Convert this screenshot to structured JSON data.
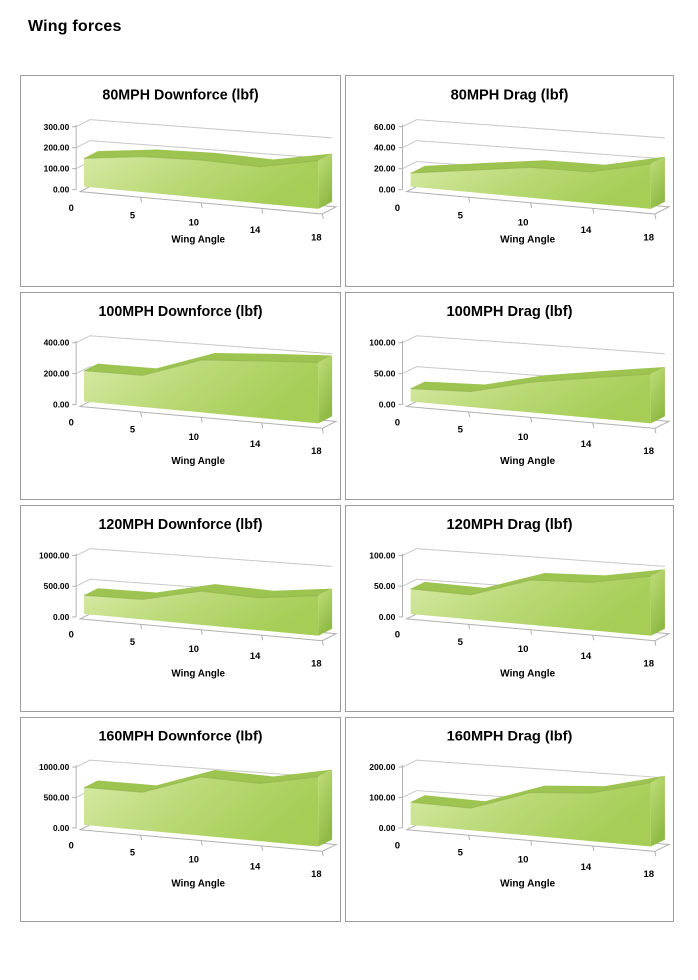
{
  "page": {
    "title": "Wing forces"
  },
  "style": {
    "area_gradient_light": "#d6e9a4",
    "area_gradient_mid": "#b8d873",
    "area_gradient_dark": "#a6cd56",
    "ribbon_green": "#9dc351",
    "cap_light": "#c0dd78",
    "cap_dark": "#8fba45",
    "edge_green": "#8fb148",
    "grid_gray": "#c8c8c8",
    "axis_gray": "#b0b0b0",
    "text_black": "#000000",
    "box_border": "#9d9d9d"
  },
  "chart_data": [
    {
      "id": "80mph-downforce",
      "type": "area",
      "title": "80MPH Downforce (lbf)",
      "xlabel": "Wing Angle",
      "categories": [
        "0",
        "5",
        "10",
        "14",
        "18"
      ],
      "x": [
        0,
        5,
        10,
        14,
        18
      ],
      "values": [
        135,
        170,
        180,
        175,
        230
      ],
      "ymax": 300,
      "ylim": [
        0,
        300
      ],
      "yticks": [
        {
          "v": 0,
          "label": "0.00"
        },
        {
          "v": 100,
          "label": "100.00"
        },
        {
          "v": 200,
          "label": "200.00"
        },
        {
          "v": 300,
          "label": "300.00"
        }
      ],
      "grid": true,
      "legend": "none",
      "row": 1,
      "col": 1
    },
    {
      "id": "80mph-drag",
      "type": "area",
      "title": "80MPH Drag (lbf)",
      "xlabel": "Wing Angle",
      "categories": [
        "0",
        "5",
        "10",
        "14",
        "18"
      ],
      "x": [
        0,
        5,
        10,
        14,
        18
      ],
      "values": [
        13,
        21,
        29,
        30,
        43
      ],
      "ymax": 60,
      "ylim": [
        0,
        60
      ],
      "yticks": [
        {
          "v": 0,
          "label": "0.00"
        },
        {
          "v": 20,
          "label": "20.00"
        },
        {
          "v": 40,
          "label": "40.00"
        },
        {
          "v": 60,
          "label": "60.00"
        }
      ],
      "grid": true,
      "legend": "none",
      "row": 1,
      "col": 2
    },
    {
      "id": "100mph-downforce",
      "type": "area",
      "title": "100MPH Downforce (lbf)",
      "xlabel": "Wing Angle",
      "categories": [
        "0",
        "5",
        "10",
        "14",
        "18"
      ],
      "x": [
        0,
        5,
        10,
        14,
        18
      ],
      "values": [
        200,
        205,
        340,
        370,
        395
      ],
      "ymax": 400,
      "ylim": [
        0,
        400
      ],
      "yticks": [
        {
          "v": 0,
          "label": "0.00"
        },
        {
          "v": 200,
          "label": "200.00"
        },
        {
          "v": 400,
          "label": "400.00"
        }
      ],
      "grid": true,
      "legend": "none",
      "row": 2,
      "col": 1
    },
    {
      "id": "100mph-drag",
      "type": "area",
      "title": "100MPH Drag (lbf)",
      "xlabel": "Wing Angle",
      "categories": [
        "0",
        "5",
        "10",
        "14",
        "18"
      ],
      "x": [
        0,
        5,
        10,
        14,
        18
      ],
      "values": [
        21,
        25,
        49,
        65,
        80
      ],
      "ymax": 100,
      "ylim": [
        0,
        100
      ],
      "yticks": [
        {
          "v": 0,
          "label": "0.00"
        },
        {
          "v": 50,
          "label": "50.00"
        },
        {
          "v": 100,
          "label": "100.00"
        }
      ],
      "grid": true,
      "legend": "none",
      "row": 2,
      "col": 2
    },
    {
      "id": "120mph-downforce",
      "type": "area",
      "title": "120MPH Downforce (lbf)",
      "xlabel": "Wing Angle",
      "categories": [
        "0",
        "5",
        "10",
        "14",
        "18"
      ],
      "x": [
        0,
        5,
        10,
        14,
        18
      ],
      "values": [
        305,
        325,
        550,
        530,
        655
      ],
      "ymax": 1000,
      "ylim": [
        0,
        1000
      ],
      "yticks": [
        {
          "v": 0,
          "label": "0.00"
        },
        {
          "v": 500,
          "label": "500.00"
        },
        {
          "v": 1000,
          "label": "1000.00"
        }
      ],
      "grid": true,
      "legend": "none",
      "row": 3,
      "col": 1
    },
    {
      "id": "120mph-drag",
      "type": "area",
      "title": "120MPH Drag (lbf)",
      "xlabel": "Wing Angle",
      "categories": [
        "0",
        "5",
        "10",
        "14",
        "18"
      ],
      "x": [
        0,
        5,
        10,
        14,
        18
      ],
      "values": [
        41,
        40,
        73,
        78,
        97
      ],
      "ymax": 100,
      "ylim": [
        0,
        100
      ],
      "yticks": [
        {
          "v": 0,
          "label": "0.00"
        },
        {
          "v": 50,
          "label": "50.00"
        },
        {
          "v": 100,
          "label": "100.00"
        }
      ],
      "grid": true,
      "legend": "none",
      "row": 3,
      "col": 2
    },
    {
      "id": "160mph-downforce",
      "type": "area",
      "title": "160MPH Downforce (lbf)",
      "xlabel": "Wing Angle",
      "categories": [
        "0",
        "5",
        "10",
        "14",
        "18"
      ],
      "x": [
        0,
        5,
        10,
        14,
        18
      ],
      "values": [
        618,
        626,
        968,
        948,
        1150
      ],
      "ymax": 1000,
      "ylim": [
        0,
        1000
      ],
      "yticks": [
        {
          "v": 0,
          "label": "0.00"
        },
        {
          "v": 500,
          "label": "500.00"
        },
        {
          "v": 1000,
          "label": "1000.00"
        }
      ],
      "grid": true,
      "legend": "none",
      "row": 4,
      "col": 1
    },
    {
      "id": "160mph-drag",
      "type": "area",
      "title": "160MPH Drag (lbf)",
      "xlabel": "Wing Angle",
      "categories": [
        "0",
        "5",
        "10",
        "14",
        "18"
      ],
      "x": [
        0,
        5,
        10,
        14,
        18
      ],
      "values": [
        75,
        73,
        142,
        158,
        210
      ],
      "ymax": 200,
      "ylim": [
        0,
        200
      ],
      "yticks": [
        {
          "v": 0,
          "label": "0.00"
        },
        {
          "v": 100,
          "label": "100.00"
        },
        {
          "v": 200,
          "label": "200.00"
        }
      ],
      "grid": true,
      "legend": "none",
      "row": 4,
      "col": 2
    }
  ]
}
